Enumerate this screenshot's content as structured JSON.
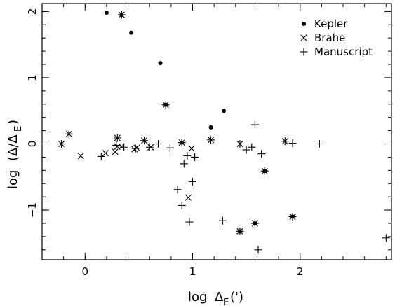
{
  "chart_data": {
    "type": "scatter",
    "xlabel": "log ΔE(')",
    "ylabel": "log (Δ/ΔE)",
    "xlim": [
      -0.4,
      2.85
    ],
    "ylim": [
      -1.75,
      2.12
    ],
    "xticks": [
      {
        "value": 0,
        "label": "0"
      },
      {
        "value": 1,
        "label": "1"
      },
      {
        "value": 2,
        "label": "2"
      }
    ],
    "yticks": [
      {
        "value": -1,
        "label": "−1"
      },
      {
        "value": 0,
        "label": "0"
      },
      {
        "value": 1,
        "label": "1"
      },
      {
        "value": 2,
        "label": "2"
      }
    ],
    "xminor_step": 0.2,
    "yminor_step": 0.2,
    "legend_position": "top-right",
    "series": [
      {
        "name": "Kepler",
        "marker": "dot",
        "points": [
          [
            0.2,
            1.98
          ],
          [
            0.34,
            1.95
          ],
          [
            0.43,
            1.68
          ],
          [
            0.7,
            1.22
          ],
          [
            1.17,
            0.25
          ],
          [
            1.29,
            0.5
          ],
          [
            1.67,
            -0.41
          ],
          [
            0.75,
            0.59
          ],
          [
            0.9,
            0.02
          ],
          [
            1.58,
            -1.2
          ],
          [
            1.44,
            -1.32
          ],
          [
            1.93,
            -1.1
          ]
        ]
      },
      {
        "name": "Brahe",
        "marker": "cross",
        "points": [
          [
            -0.22,
            0.0
          ],
          [
            -0.15,
            0.15
          ],
          [
            -0.04,
            -0.18
          ],
          [
            0.19,
            -0.14
          ],
          [
            0.28,
            -0.12
          ],
          [
            0.3,
            0.09
          ],
          [
            0.3,
            -0.04
          ],
          [
            0.34,
            1.95
          ],
          [
            0.34,
            -0.04
          ],
          [
            0.46,
            -0.08
          ],
          [
            0.48,
            -0.06
          ],
          [
            0.55,
            0.05
          ],
          [
            0.61,
            -0.05
          ],
          [
            0.75,
            0.59
          ],
          [
            0.9,
            0.02
          ],
          [
            0.96,
            -0.81
          ],
          [
            0.99,
            -0.07
          ],
          [
            1.17,
            0.06
          ],
          [
            1.44,
            0.0
          ],
          [
            1.44,
            -1.32
          ],
          [
            1.58,
            -1.2
          ],
          [
            1.67,
            -0.41
          ],
          [
            1.86,
            0.04
          ],
          [
            1.93,
            -1.1
          ]
        ]
      },
      {
        "name": "Manuscript",
        "marker": "plus",
        "points": [
          [
            -0.22,
            0.0
          ],
          [
            -0.15,
            0.15
          ],
          [
            0.15,
            -0.19
          ],
          [
            0.29,
            -0.02
          ],
          [
            0.3,
            0.09
          ],
          [
            0.34,
            1.95
          ],
          [
            0.36,
            -0.05
          ],
          [
            0.47,
            -0.07
          ],
          [
            0.55,
            0.05
          ],
          [
            0.6,
            -0.05
          ],
          [
            0.68,
            0.0
          ],
          [
            0.75,
            0.59
          ],
          [
            0.79,
            -0.06
          ],
          [
            0.86,
            -0.69
          ],
          [
            0.9,
            0.02
          ],
          [
            0.9,
            -0.93
          ],
          [
            0.92,
            -0.3
          ],
          [
            0.95,
            -0.18
          ],
          [
            0.97,
            -1.18
          ],
          [
            1.0,
            -0.57
          ],
          [
            1.02,
            -0.2
          ],
          [
            1.17,
            0.06
          ],
          [
            1.28,
            -1.16
          ],
          [
            1.44,
            0.0
          ],
          [
            1.44,
            -1.32
          ],
          [
            1.5,
            -0.09
          ],
          [
            1.55,
            -0.05
          ],
          [
            1.58,
            0.29
          ],
          [
            1.58,
            -1.2
          ],
          [
            1.61,
            -1.6
          ],
          [
            1.64,
            -0.15
          ],
          [
            1.67,
            -0.41
          ],
          [
            1.86,
            0.04
          ],
          [
            1.93,
            -1.1
          ],
          [
            1.93,
            0.01
          ],
          [
            2.18,
            0.0
          ],
          [
            2.8,
            -1.42
          ]
        ]
      }
    ]
  }
}
